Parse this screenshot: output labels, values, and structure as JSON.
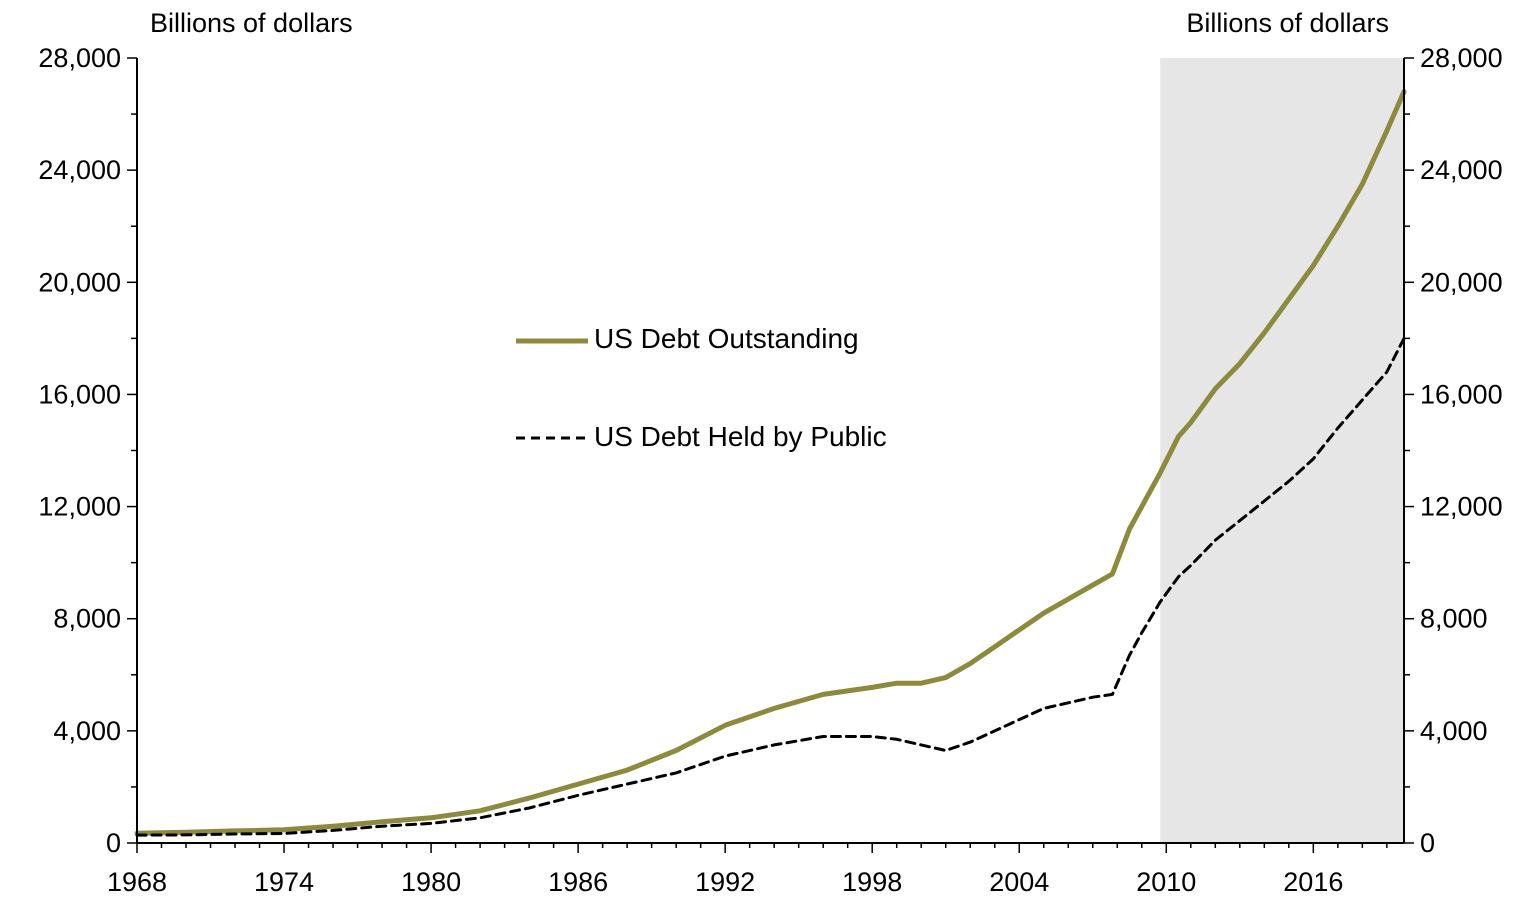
{
  "chart_data": {
    "type": "line",
    "title": "",
    "y_unit_left": "Billions of dollars",
    "y_unit_right": "Billions of dollars",
    "xlabel": "",
    "ylabel": "",
    "xlim": [
      1968,
      2019.7
    ],
    "ylim": [
      0,
      28000
    ],
    "x_ticks": [
      "1968",
      "1974",
      "1980",
      "1986",
      "1992",
      "1998",
      "2004",
      "2010",
      "2016"
    ],
    "y_ticks": [
      "0",
      "4,000",
      "8,000",
      "12,000",
      "16,000",
      "20,000",
      "24,000",
      "28,000"
    ],
    "grid": false,
    "legend_position": "center-left",
    "shaded_region": {
      "from": 2009.75,
      "to": 2019.7,
      "color": "#e6e6e6"
    },
    "x": [
      1968,
      1970,
      1972,
      1974,
      1976,
      1978,
      1980,
      1982,
      1984,
      1986,
      1988,
      1990,
      1992,
      1994,
      1996,
      1998,
      1999,
      2000,
      2001,
      2002,
      2003,
      2004,
      2005,
      2006,
      2007,
      2007.8,
      2008.5,
      2009,
      2009.75,
      2010.5,
      2011,
      2012,
      2013,
      2014,
      2015,
      2016,
      2017,
      2018,
      2019,
      2019.7
    ],
    "series": [
      {
        "name": "US Debt Outstanding",
        "color": "#8c8a3c",
        "style": "solid",
        "values": [
          350,
          380,
          430,
          470,
          600,
          760,
          900,
          1150,
          1600,
          2100,
          2600,
          3300,
          4200,
          4800,
          5300,
          5550,
          5700,
          5700,
          5900,
          6400,
          7000,
          7600,
          8200,
          8700,
          9200,
          9600,
          11200,
          12000,
          13200,
          14500,
          15000,
          16200,
          17100,
          18200,
          19400,
          20600,
          22000,
          23500,
          25400,
          26800
        ]
      },
      {
        "name": "US Debt Held by Public",
        "color": "#000000",
        "style": "dashed",
        "values": [
          280,
          290,
          320,
          340,
          450,
          600,
          700,
          900,
          1250,
          1700,
          2100,
          2500,
          3100,
          3500,
          3800,
          3800,
          3700,
          3500,
          3300,
          3600,
          4000,
          4400,
          4800,
          5000,
          5200,
          5300,
          6700,
          7500,
          8600,
          9500,
          9900,
          10800,
          11500,
          12200,
          12900,
          13700,
          14800,
          15800,
          16800,
          18000
        ]
      }
    ]
  }
}
